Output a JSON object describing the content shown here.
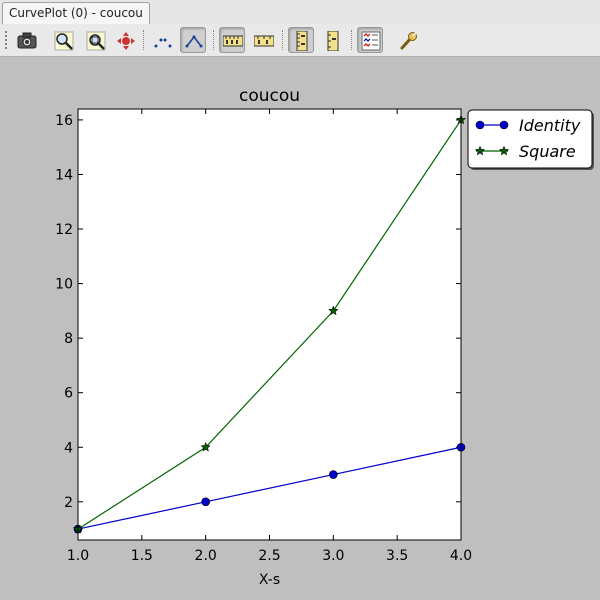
{
  "window": {
    "tab_title": "CurvePlot (0) - coucou"
  },
  "toolbar": {
    "buttons": [
      {
        "name": "camera-icon",
        "checked": false
      },
      {
        "name": "zoom-in-icon",
        "checked": false
      },
      {
        "name": "zoom-fit-icon",
        "checked": false
      },
      {
        "name": "pan-icon",
        "checked": false
      },
      {
        "name": "markers-only-icon",
        "checked": false
      },
      {
        "name": "lines-icon",
        "checked": true
      },
      {
        "name": "horizontal-ruler-icon",
        "checked": true
      },
      {
        "name": "horizontal-ruler-alt-icon",
        "checked": false
      },
      {
        "name": "vertical-ruler-icon",
        "checked": true
      },
      {
        "name": "vertical-ruler-alt-icon",
        "checked": false
      },
      {
        "name": "legend-icon",
        "checked": true
      },
      {
        "name": "settings-wrench-icon",
        "checked": false
      }
    ]
  },
  "colors": {
    "identity": "#0000cc",
    "square": "#006400",
    "plot_background": "#ffffff",
    "canvas_background": "#bfbfbf"
  },
  "chart_data": {
    "type": "line",
    "title": "coucou",
    "xlabel": "X-s",
    "ylabel": "",
    "xlim": [
      1.0,
      4.0
    ],
    "ylim": [
      0.6,
      16.4
    ],
    "xticks": [
      "1.0",
      "1.5",
      "2.0",
      "2.5",
      "3.0",
      "3.5",
      "4.0"
    ],
    "xtick_values": [
      1.0,
      1.5,
      2.0,
      2.5,
      3.0,
      3.5,
      4.0
    ],
    "yticks": [
      "2",
      "4",
      "6",
      "8",
      "10",
      "12",
      "14",
      "16"
    ],
    "ytick_values": [
      2,
      4,
      6,
      8,
      10,
      12,
      14,
      16
    ],
    "x": [
      1,
      2,
      3,
      4
    ],
    "series": [
      {
        "name": "Identity",
        "values": [
          1,
          2,
          3,
          4
        ],
        "marker": "circle",
        "color": "#0000cc"
      },
      {
        "name": "Square",
        "values": [
          1,
          4,
          9,
          16
        ],
        "marker": "star",
        "color": "#006400"
      }
    ],
    "legend": "top-right outside",
    "grid": false
  }
}
